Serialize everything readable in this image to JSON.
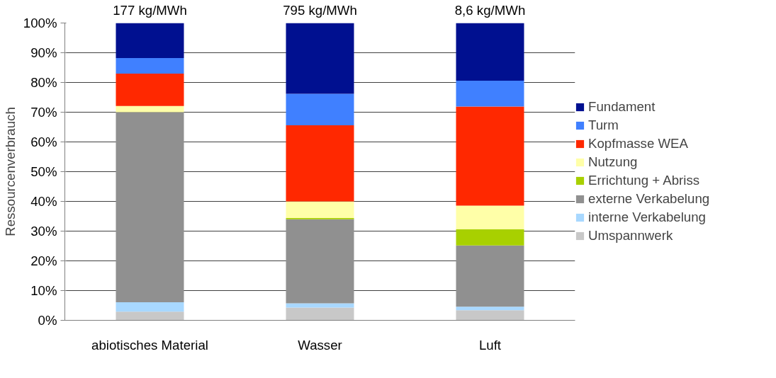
{
  "chart_data": {
    "type": "bar",
    "stacked": true,
    "ylabel": "Ressourcenverbrauch",
    "categories": [
      "abiotisches Material",
      "Wasser",
      "Luft"
    ],
    "series": [
      {
        "name": "Umspannwerk",
        "color": "#c8c8c8",
        "values": [
          2.9,
          4.3,
          3.4
        ]
      },
      {
        "name": "interne Verkabelung",
        "color": "#a8d8ff",
        "values": [
          3.2,
          1.4,
          1.2
        ]
      },
      {
        "name": "externe Verkabelung",
        "color": "#909090",
        "values": [
          63.9,
          28.3,
          20.6
        ]
      },
      {
        "name": "Errichtung + Abriss",
        "color": "#a8d000",
        "values": [
          0,
          0.4,
          5.4
        ]
      },
      {
        "name": "Nutzung",
        "color": "#ffffa8",
        "values": [
          2.1,
          5.6,
          8.0
        ]
      },
      {
        "name": "Kopfmasse WEA",
        "color": "#ff2800",
        "values": [
          10.9,
          25.6,
          33.3
        ]
      },
      {
        "name": "Turm",
        "color": "#4080ff",
        "values": [
          5.2,
          10.6,
          8.7
        ]
      },
      {
        "name": "Fundament",
        "color": "#001090",
        "values": [
          11.8,
          23.8,
          19.4
        ]
      }
    ],
    "ylim": [
      0,
      100
    ],
    "yticks": [
      {
        "value": 0,
        "label": "0%"
      },
      {
        "value": 10,
        "label": "10%"
      },
      {
        "value": 20,
        "label": "20%"
      },
      {
        "value": 30,
        "label": "30%"
      },
      {
        "value": 40,
        "label": "40%"
      },
      {
        "value": 50,
        "label": "50%"
      },
      {
        "value": 60,
        "label": "60%"
      },
      {
        "value": 70,
        "label": "70%"
      },
      {
        "value": 80,
        "label": "80%"
      },
      {
        "value": 90,
        "label": "90%"
      },
      {
        "value": 100,
        "label": "100%"
      }
    ],
    "grid": "y",
    "legend": "right",
    "annotations": [
      {
        "text": "177 kg/MWh",
        "x": "abiotisches Material",
        "y": 100
      },
      {
        "text": "795 kg/MWh",
        "x": "Wasser",
        "y": 100
      },
      {
        "text": "8,6 kg/MWh",
        "x": "Luft",
        "y": 100
      }
    ]
  }
}
